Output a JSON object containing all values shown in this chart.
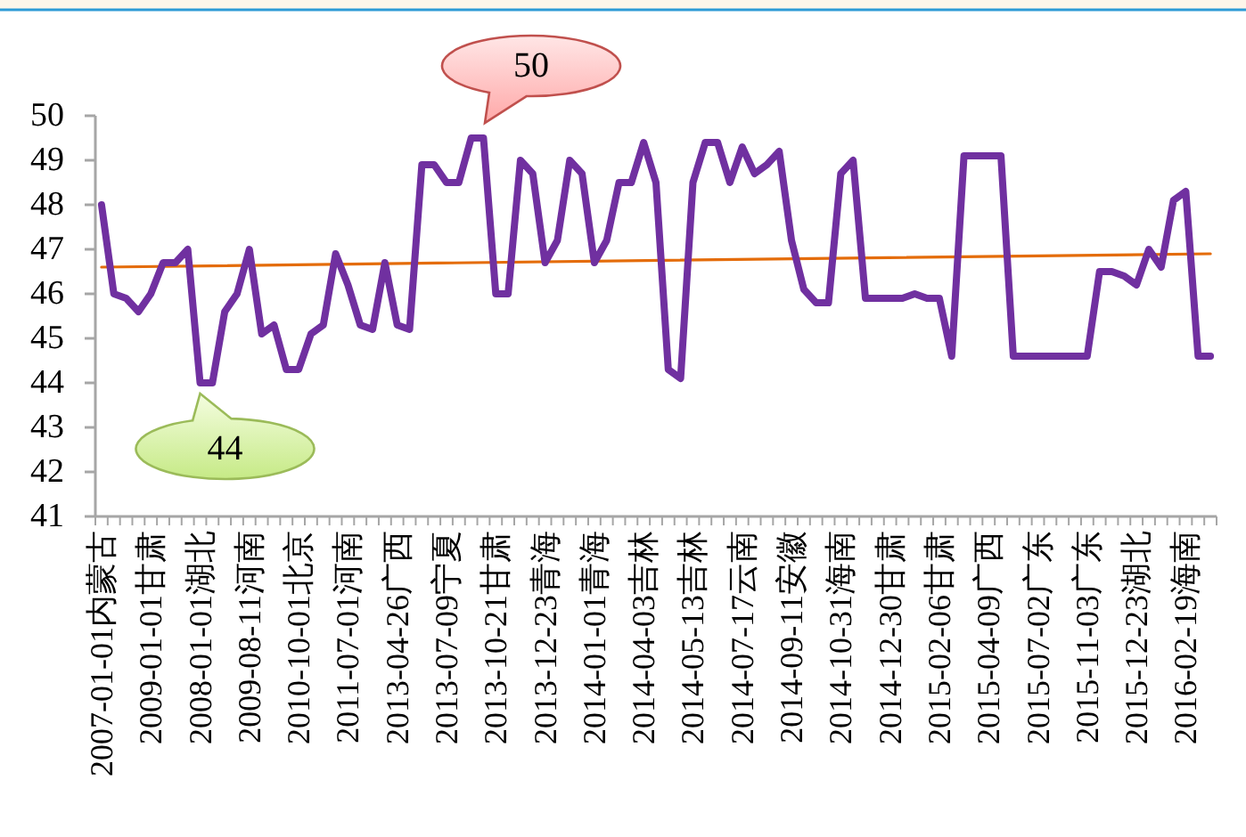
{
  "chart_data": {
    "type": "line",
    "categories": [
      "2007-01-01内蒙古",
      null,
      null,
      null,
      "2009-01-01甘肃",
      null,
      null,
      null,
      "2008-01-01湖北",
      null,
      null,
      null,
      "2009-08-11河南",
      null,
      null,
      null,
      "2010-10-01北京",
      null,
      null,
      null,
      "2011-07-01河南",
      null,
      null,
      null,
      "2013-04-26广西",
      null,
      null,
      null,
      "2013-07-09宁夏",
      null,
      null,
      null,
      "2013-10-21甘肃",
      null,
      null,
      null,
      "2013-12-23青海",
      null,
      null,
      null,
      "2014-01-01青海",
      null,
      null,
      null,
      "2014-04-03吉林",
      null,
      null,
      null,
      "2014-05-13吉林",
      null,
      null,
      null,
      "2014-07-17云南",
      null,
      null,
      null,
      "2014-09-11安徽",
      null,
      null,
      null,
      "2014-10-31海南",
      null,
      null,
      null,
      "2014-12-30甘肃",
      null,
      null,
      null,
      "2015-02-06甘肃",
      null,
      null,
      null,
      "2015-04-09广西",
      null,
      null,
      null,
      "2015-07-02广东",
      null,
      null,
      null,
      "2015-11-03广东",
      null,
      null,
      null,
      "2015-12-23湖北",
      null,
      null,
      null,
      "2016-02-19海南",
      null,
      null
    ],
    "series": [
      {
        "color": "#7030a0",
        "values": [
          48.0,
          46.0,
          45.9,
          45.6,
          46.0,
          46.7,
          46.7,
          47.0,
          44.0,
          44.0,
          45.6,
          46.0,
          47.0,
          45.1,
          45.3,
          44.3,
          44.3,
          45.1,
          45.3,
          46.9,
          46.2,
          45.3,
          45.2,
          46.7,
          45.3,
          45.2,
          48.9,
          48.9,
          48.5,
          48.5,
          49.5,
          49.5,
          46.0,
          46.0,
          49.0,
          48.7,
          46.7,
          47.2,
          49.0,
          48.7,
          46.7,
          47.2,
          48.5,
          48.5,
          49.4,
          48.5,
          44.3,
          44.1,
          48.5,
          49.4,
          49.4,
          48.5,
          49.3,
          48.7,
          48.9,
          49.2,
          47.2,
          46.1,
          45.8,
          45.8,
          48.7,
          49.0,
          45.9,
          45.9,
          45.9,
          45.9,
          46.0,
          45.9,
          45.9,
          44.6,
          49.1,
          49.1,
          49.1,
          49.1,
          44.6,
          44.6,
          44.6,
          44.6,
          44.6,
          44.6,
          44.6,
          46.5,
          46.5,
          46.4,
          46.2,
          47.0,
          46.6,
          48.1,
          48.3,
          44.6,
          44.6
        ]
      },
      {
        "type": "line",
        "color": "#e46c0a",
        "values": [
          46.6,
          null,
          null,
          null,
          null,
          null,
          null,
          null,
          null,
          null,
          null,
          null,
          null,
          null,
          null,
          null,
          null,
          null,
          null,
          null,
          null,
          null,
          null,
          null,
          null,
          null,
          null,
          null,
          null,
          null,
          null,
          null,
          null,
          null,
          null,
          null,
          null,
          null,
          null,
          null,
          null,
          null,
          null,
          null,
          null,
          null,
          null,
          null,
          null,
          null,
          null,
          null,
          null,
          null,
          null,
          null,
          null,
          null,
          null,
          null,
          null,
          null,
          null,
          null,
          null,
          null,
          null,
          null,
          null,
          null,
          null,
          null,
          null,
          null,
          null,
          null,
          null,
          null,
          null,
          null,
          null,
          null,
          null,
          null,
          null,
          null,
          null,
          null,
          null,
          null,
          46.9
        ]
      }
    ],
    "ylim": [
      41,
      50
    ],
    "yticks": [
      41,
      42,
      43,
      44,
      45,
      46,
      47,
      48,
      49,
      50
    ],
    "annotations": [
      "50",
      {
        "text": "44",
        "x": "2008-01-01湖北",
        "y": 44
      }
    ]
  }
}
